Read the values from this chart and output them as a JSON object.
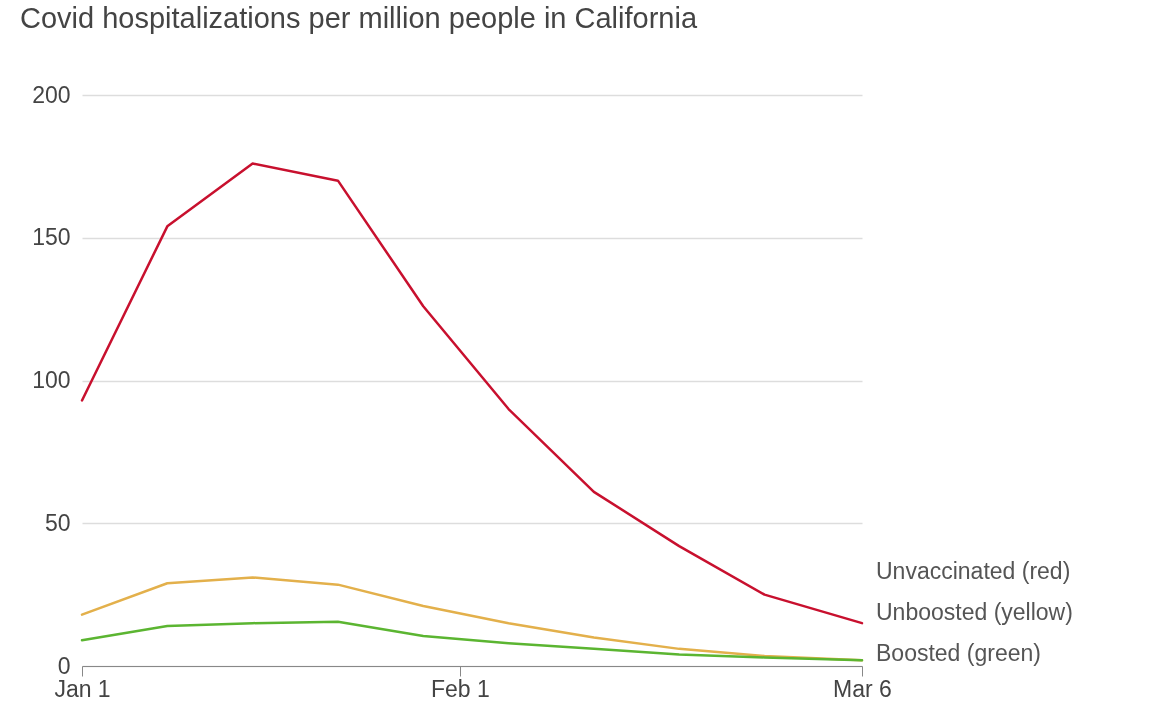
{
  "chart_data": {
    "type": "line",
    "title": "Covid hospitalizations per million people in California",
    "x": [
      "--01-01",
      "--01-08",
      "--01-15",
      "--01-22",
      "--01-29",
      "--02-05",
      "--02-12",
      "--02-19",
      "--02-26",
      "--03-06"
    ],
    "series": [
      {
        "name": "Unvaccinated (red)",
        "color": "#c8102e",
        "values": [
          93,
          154,
          176,
          170,
          126,
          90,
          61,
          42,
          25,
          15
        ]
      },
      {
        "name": "Unboosted (yellow)",
        "color": "#e3b04b",
        "values": [
          18,
          29,
          31,
          28.5,
          21,
          15,
          10,
          6,
          3.5,
          2
        ]
      },
      {
        "name": "Boosted (green)",
        "color": "#5bb531",
        "values": [
          9,
          14,
          15,
          15.5,
          10.5,
          8,
          6,
          4,
          3,
          2
        ]
      }
    ],
    "xlim": [
      "--01-01",
      "--03-06"
    ],
    "xticks": [
      {
        "value": "--01-01",
        "label": "Jan 1"
      },
      {
        "value": "--02-01",
        "label": "Feb 1"
      },
      {
        "value": "--03-06",
        "label": "Mar 6"
      }
    ],
    "ylim": [
      0,
      200
    ],
    "yticks": [
      0,
      50,
      100,
      150,
      200
    ],
    "grid": "y",
    "legend": "right",
    "line_style": "solid"
  }
}
